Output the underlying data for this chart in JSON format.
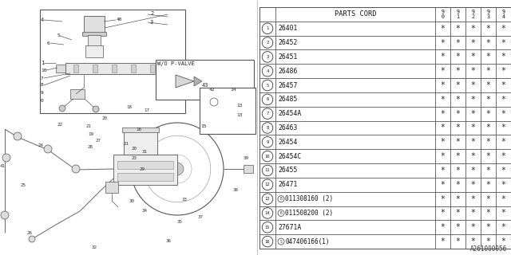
{
  "col_header": "PARTS CORD",
  "year_cols": [
    "9\n0",
    "9\n1",
    "9\n2",
    "9\n3",
    "9\n4"
  ],
  "rows": [
    {
      "num": "1",
      "prefix": "",
      "code": "26401",
      "suffix": ""
    },
    {
      "num": "2",
      "prefix": "",
      "code": "26452",
      "suffix": ""
    },
    {
      "num": "3",
      "prefix": "",
      "code": "26451",
      "suffix": ""
    },
    {
      "num": "4",
      "prefix": "",
      "code": "26486",
      "suffix": ""
    },
    {
      "num": "5",
      "prefix": "",
      "code": "26457",
      "suffix": ""
    },
    {
      "num": "6",
      "prefix": "",
      "code": "26485",
      "suffix": ""
    },
    {
      "num": "7",
      "prefix": "",
      "code": "26454A",
      "suffix": ""
    },
    {
      "num": "8",
      "prefix": "",
      "code": "26463",
      "suffix": ""
    },
    {
      "num": "9",
      "prefix": "",
      "code": "26454",
      "suffix": ""
    },
    {
      "num": "10",
      "prefix": "",
      "code": "26454C",
      "suffix": ""
    },
    {
      "num": "11",
      "prefix": "",
      "code": "26455",
      "suffix": ""
    },
    {
      "num": "12",
      "prefix": "",
      "code": "26471",
      "suffix": ""
    },
    {
      "num": "13",
      "prefix": "B",
      "code": "011308160",
      "suffix": " (2)"
    },
    {
      "num": "14",
      "prefix": "B",
      "code": "011508200",
      "suffix": " (2)"
    },
    {
      "num": "15",
      "prefix": "",
      "code": "27671A",
      "suffix": ""
    },
    {
      "num": "16",
      "prefix": "S",
      "code": "047406166(1)",
      "suffix": ""
    }
  ],
  "footnote": "A261000056",
  "table_bg": "#ffffff",
  "line_color": "#777777",
  "text_color": "#222222",
  "diagram_bg": "#ffffff"
}
